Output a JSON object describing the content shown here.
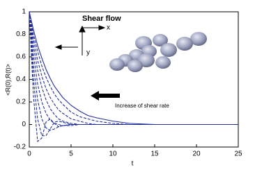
{
  "chart_data": {
    "type": "line",
    "xlabel": "t",
    "ylabel": "<R(0);R(t)>",
    "x": [
      0,
      0.5,
      1,
      1.5,
      2,
      2.5,
      3,
      3.5,
      4,
      5,
      6,
      7,
      8,
      10,
      12,
      15,
      20,
      25
    ],
    "series": [
      {
        "color": "#1f2d9c",
        "style": "solid",
        "values": [
          1,
          0.84,
          0.7,
          0.59,
          0.49,
          0.41,
          0.34,
          0.29,
          0.24,
          0.17,
          0.12,
          0.08,
          0.06,
          0.03,
          0.01,
          0,
          0,
          0
        ]
      },
      {
        "color": "#1f2d9c",
        "style": "dashed",
        "values": [
          1,
          0.8,
          0.65,
          0.52,
          0.42,
          0.34,
          0.27,
          0.22,
          0.18,
          0.11,
          0.07,
          0.05,
          0.03,
          0.01,
          0,
          0,
          0,
          0
        ]
      },
      {
        "color": "#1f2d9c",
        "style": "dashed",
        "values": [
          1,
          0.76,
          0.57,
          0.43,
          0.32,
          0.24,
          0.18,
          0.13,
          0.1,
          0.05,
          0.03,
          0.01,
          0,
          0,
          0,
          0,
          0,
          0
        ]
      },
      {
        "color": "#1f2d9c",
        "style": "dashed",
        "values": [
          1,
          0.7,
          0.48,
          0.33,
          0.22,
          0.14,
          0.09,
          0.05,
          0.03,
          0.01,
          0,
          0,
          0,
          0,
          0,
          0,
          0,
          0
        ]
      },
      {
        "color": "#1f2d9c",
        "style": "dashed",
        "values": [
          1,
          0.62,
          0.36,
          0.2,
          0.1,
          0.04,
          0.01,
          0,
          -0.01,
          -0.01,
          0,
          0,
          0,
          0,
          0,
          0,
          0,
          0
        ]
      },
      {
        "color": "#1f2d9c",
        "style": "dashed",
        "values": [
          1,
          0.52,
          0.22,
          0.05,
          -0.03,
          -0.05,
          -0.04,
          -0.02,
          -0.01,
          0,
          0,
          0,
          0,
          0,
          0,
          0,
          0,
          0
        ]
      },
      {
        "color": "#1f2d9c",
        "style": "dashed",
        "values": [
          1,
          0.4,
          0.05,
          -0.1,
          -0.1,
          -0.04,
          0.02,
          0.03,
          0.02,
          0,
          0,
          0,
          0,
          0,
          0,
          0,
          0,
          0
        ]
      },
      {
        "color": "#1f2d9c",
        "style": "dashed",
        "values": [
          1,
          0.25,
          -0.15,
          -0.12,
          0.02,
          0.05,
          0.01,
          -0.02,
          -0.01,
          0,
          0,
          0,
          0,
          0,
          0,
          0,
          0,
          0
        ]
      }
    ],
    "xlim": [
      0,
      25
    ],
    "xticks": [
      0,
      5,
      10,
      15,
      20,
      25
    ],
    "ylim": [
      -0.2,
      1
    ],
    "yticks": [
      -0.2,
      0,
      0.2,
      0.4,
      0.6,
      0.8,
      1
    ],
    "annotations": {
      "inset_title": "Shear flow",
      "x_axis": "x",
      "y_axis": "y",
      "arrow_note": "Increase of shear rate"
    }
  }
}
